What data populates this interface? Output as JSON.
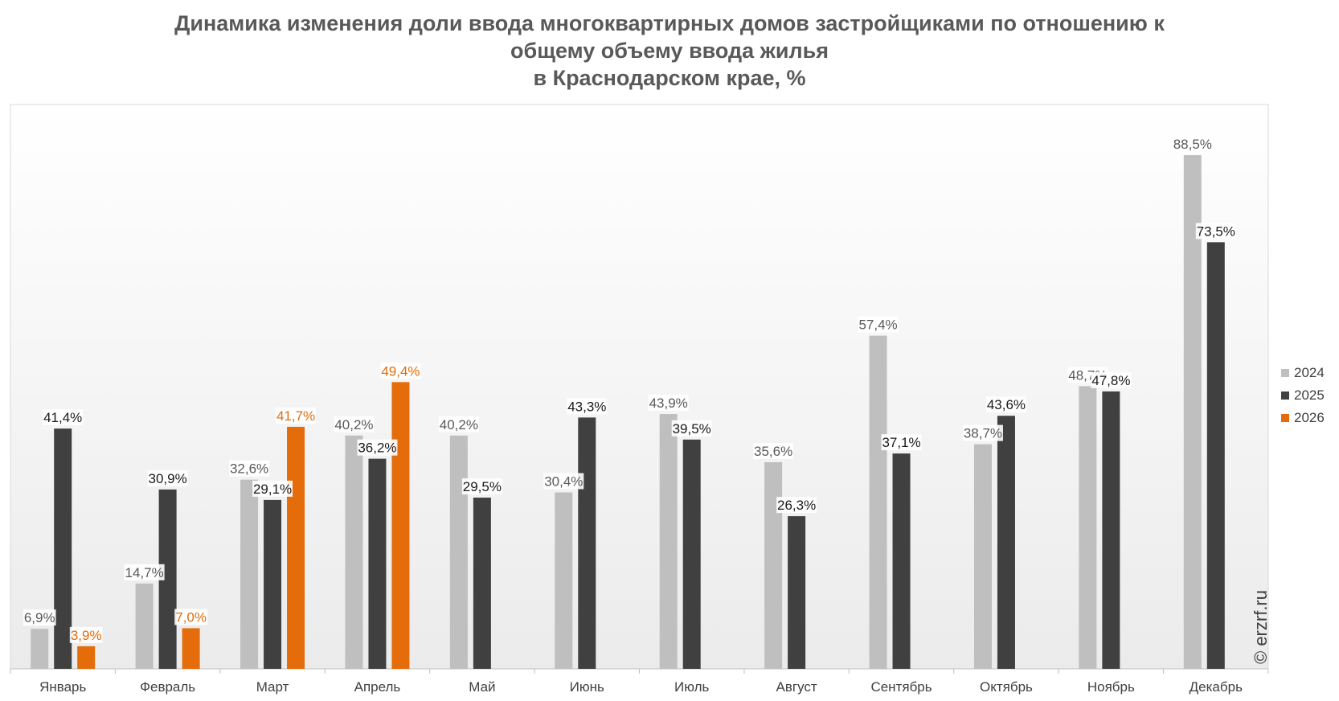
{
  "chart_data": {
    "type": "bar",
    "title": [
      "Динамика изменения доли ввода многоквартирных домов застройщиками по отношению к",
      "общему объему ввода жилья",
      "в Краснодарском крае, %"
    ],
    "categories": [
      "Январь",
      "Февраль",
      "Март",
      "Апрель",
      "Май",
      "Июнь",
      "Июль",
      "Август",
      "Сентябрь",
      "Октябрь",
      "Ноябрь",
      "Декабрь"
    ],
    "series": [
      {
        "name": "2024",
        "color": "#bfbfbf",
        "label_color": "#595959",
        "values": [
          6.9,
          14.7,
          32.6,
          40.2,
          40.2,
          30.4,
          43.9,
          35.6,
          57.4,
          38.7,
          48.7,
          88.5
        ],
        "labels": [
          "6,9%",
          "14,7%",
          "32,6%",
          "40,2%",
          "40,2%",
          "30,4%",
          "43,9%",
          "35,6%",
          "57,4%",
          "38,7%",
          "48,7%",
          "88,5%"
        ]
      },
      {
        "name": "2025",
        "color": "#404040",
        "label_color": "#1a1a1a",
        "values": [
          41.4,
          30.9,
          29.1,
          36.2,
          29.5,
          43.3,
          39.5,
          26.3,
          37.1,
          43.6,
          47.8,
          73.5
        ],
        "labels": [
          "41,4%",
          "30,9%",
          "29,1%",
          "36,2%",
          "29,5%",
          "43,3%",
          "39,5%",
          "26,3%",
          "37,1%",
          "43,6%",
          "47,8%",
          "73,5%"
        ]
      },
      {
        "name": "2026",
        "color": "#e46c0a",
        "label_color": "#e46c0a",
        "values": [
          3.9,
          7.0,
          41.7,
          49.4,
          null,
          null,
          null,
          null,
          null,
          null,
          null,
          null
        ],
        "labels": [
          "3,9%",
          "7,0%",
          "41,7%",
          "49,4%",
          null,
          null,
          null,
          null,
          null,
          null,
          null,
          null
        ]
      }
    ],
    "ylim": [
      0,
      100
    ],
    "grid": false,
    "legend_position": "right"
  },
  "watermark": "© erzrf.ru"
}
